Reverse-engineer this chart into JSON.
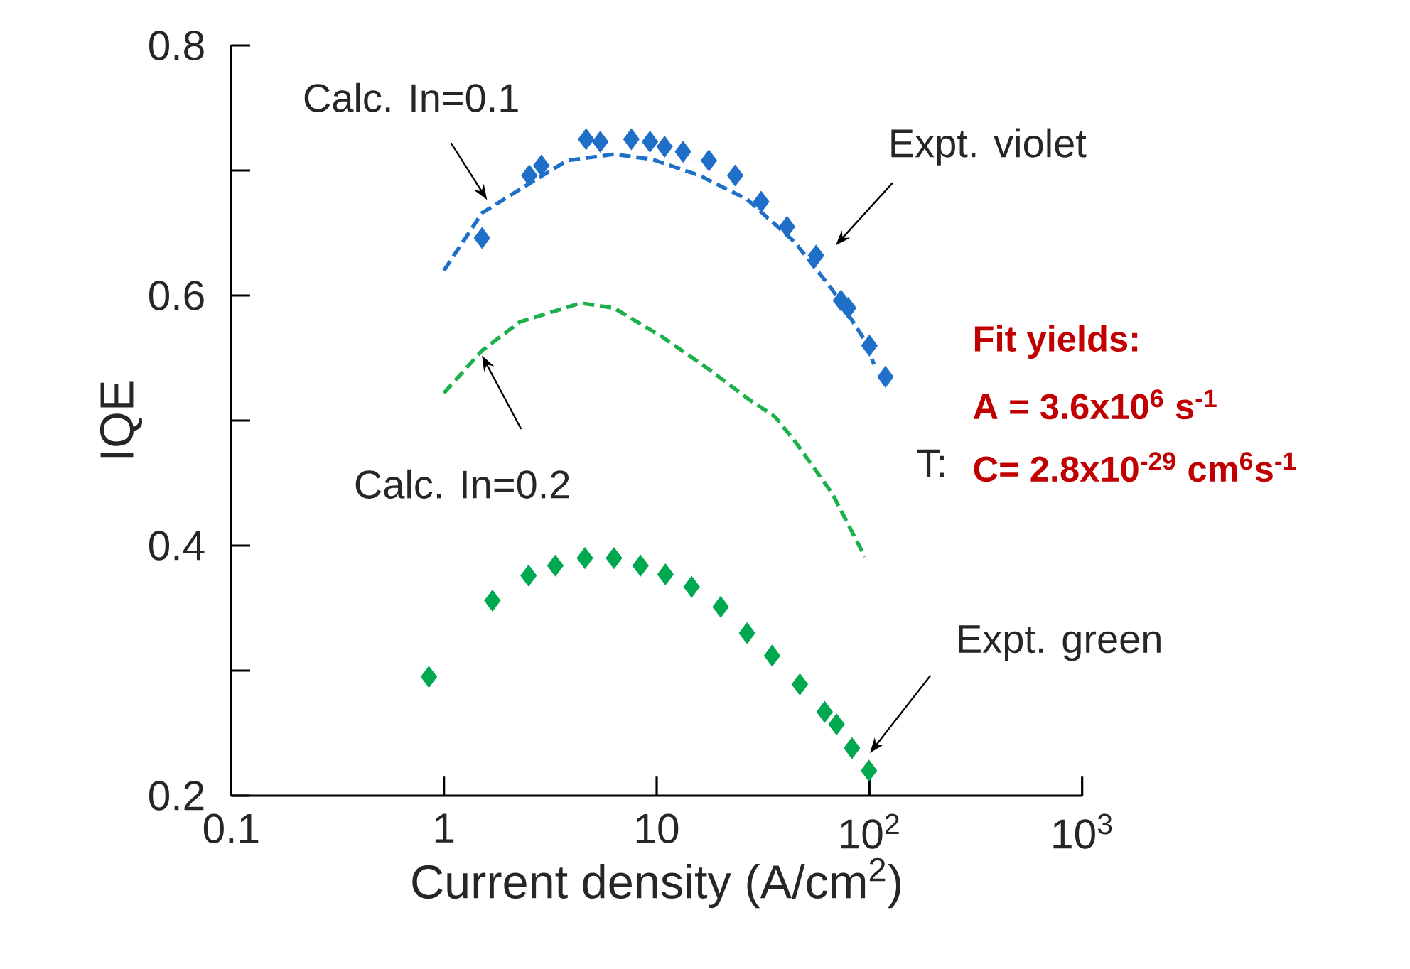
{
  "chart_data": {
    "type": "scatter",
    "xlabel": "Current density (A/cm$^{2}$)",
    "ylabel": "IQE",
    "log": "x",
    "xlim": [
      0.1,
      1000
    ],
    "xticks": [
      0.1,
      1,
      10,
      {
        "value": 100,
        "label": "10$^{2}$"
      },
      {
        "value": 1000,
        "label": "10$^{3}$"
      }
    ],
    "ylim": [
      0.2,
      0.8
    ],
    "yticks": [
      0.2,
      {
        "value": 0.3,
        "label": null
      },
      0.4,
      {
        "value": 0.5,
        "label": null
      },
      0.6,
      {
        "value": 0.7,
        "label": null
      },
      0.8
    ],
    "series": [
      {
        "type": "line",
        "color": "#1f6fc9",
        "line_style": "dashed",
        "marker": "none",
        "x": [
          1.0,
          1.51,
          2.28,
          3.8,
          6.3,
          9.5,
          15.9,
          26.6,
          44.4,
          66.7,
          95.3,
          105
        ],
        "values": [
          0.62,
          0.666,
          0.685,
          0.708,
          0.713,
          0.709,
          0.696,
          0.677,
          0.643,
          0.605,
          0.564,
          0.545
        ]
      },
      {
        "color": "#1f6fc9",
        "marker": "diamond",
        "x": [
          1.51,
          2.52,
          2.87,
          4.66,
          5.43,
          7.6,
          9.3,
          10.9,
          13.3,
          17.6,
          23.4,
          31.0,
          41.0,
          56.1,
          73.5,
          79.5,
          100,
          119
        ],
        "values": [
          0.646,
          0.696,
          0.704,
          0.725,
          0.723,
          0.725,
          0.723,
          0.719,
          0.715,
          0.708,
          0.696,
          0.675,
          0.655,
          0.632,
          0.596,
          0.59,
          0.56,
          0.535
        ]
      },
      {
        "type": "line",
        "color": "#1cb04a",
        "line_style": "dashed",
        "marker": "none",
        "x": [
          1.0,
          1.51,
          2.28,
          4.4,
          6.3,
          10.6,
          17.6,
          26.6,
          36,
          44.4,
          66.7,
          95.3
        ],
        "values": [
          0.522,
          0.556,
          0.579,
          0.594,
          0.59,
          0.567,
          0.541,
          0.518,
          0.503,
          0.484,
          0.442,
          0.391
        ]
      },
      {
        "color": "#00a850",
        "marker": "diamond",
        "x": [
          0.85,
          1.69,
          2.5,
          3.34,
          4.6,
          6.3,
          8.4,
          11.0,
          14.6,
          20.0,
          26.6,
          34.9,
          47.1,
          61.6,
          70.1,
          82.8,
          99.5
        ],
        "values": [
          0.295,
          0.356,
          0.376,
          0.384,
          0.39,
          0.39,
          0.384,
          0.377,
          0.367,
          0.351,
          0.33,
          0.312,
          0.289,
          0.267,
          0.257,
          0.238,
          0.22
        ]
      }
    ],
    "annotations": [
      "Calc. In=0.1",
      "Expt. violet",
      {
        "text": "Calc. In=0.2",
        "x": 1.51,
        "y": 0.552
      },
      "Expt. green",
      "T:",
      "Fit yields:",
      "A = 3.6x10$^{6}$ s$^{-1}$",
      "C= 2.8x10$^{-29}$ cm$^{6}$s$^{-1}$"
    ]
  }
}
